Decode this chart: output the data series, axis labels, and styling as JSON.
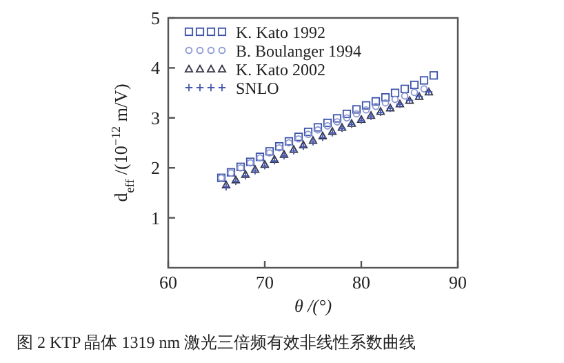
{
  "chart_data": {
    "type": "scatter",
    "xlabel": "θ /(°)",
    "ylabel": "d$_{eff}$ /(10$^{−12}$ m/V)",
    "xlim": [
      60,
      90
    ],
    "xticks": [
      60,
      70,
      80,
      90
    ],
    "ylim": [
      0,
      5
    ],
    "yticks": [
      1,
      2,
      3,
      4,
      5
    ],
    "grid": false,
    "legend": "top left",
    "annotations": [
      "图 2 KTP 晶体 1319 nm 激光三倍频有效非线性系数曲线"
    ],
    "series": [
      {
        "name": "K. Kato 1992",
        "color": "#3b52a8",
        "marker": "square",
        "x": [
          65.5,
          66.5,
          67.5,
          68.5,
          69.5,
          70.5,
          71.5,
          72.5,
          73.5,
          74.5,
          75.5,
          76.5,
          77.5,
          78.5,
          79.5,
          80.5,
          81.5,
          82.5,
          83.5,
          84.5,
          85.5,
          86.5,
          87.5
        ],
        "values": [
          1.8,
          1.91,
          2.02,
          2.12,
          2.22,
          2.33,
          2.43,
          2.53,
          2.62,
          2.72,
          2.81,
          2.9,
          2.99,
          3.08,
          3.17,
          3.25,
          3.33,
          3.41,
          3.5,
          3.58,
          3.66,
          3.75,
          3.85
        ]
      },
      {
        "name": "B. Boulanger 1994",
        "color": "#8a96d2",
        "marker": "circle",
        "x": [
          65.5,
          66.5,
          67.5,
          68.5,
          69.5,
          70.5,
          71.5,
          72.5,
          73.5,
          74.5,
          75.5,
          76.5,
          77.5,
          78.5,
          79.5,
          80.5,
          81.5,
          82.5,
          83.5,
          84.5,
          85.5,
          86.5
        ],
        "values": [
          1.8,
          1.9,
          2.0,
          2.1,
          2.2,
          2.3,
          2.4,
          2.5,
          2.58,
          2.67,
          2.76,
          2.84,
          2.92,
          3.0,
          3.08,
          3.16,
          3.23,
          3.3,
          3.37,
          3.44,
          3.51,
          3.58
        ]
      },
      {
        "name": "K. Kato 2002",
        "color": "#333344",
        "marker": "triangle",
        "x": [
          66,
          67,
          68,
          69,
          70,
          71,
          72,
          73,
          74,
          75,
          76,
          77,
          78,
          79,
          80,
          81,
          82,
          83,
          84,
          85,
          86,
          87
        ],
        "values": [
          1.66,
          1.76,
          1.87,
          1.97,
          2.07,
          2.17,
          2.27,
          2.37,
          2.46,
          2.55,
          2.64,
          2.73,
          2.81,
          2.89,
          2.97,
          3.05,
          3.13,
          3.2,
          3.28,
          3.35,
          3.43,
          3.52
        ]
      },
      {
        "name": "SNLO",
        "color": "#4557b0",
        "marker": "cross",
        "x": [
          66,
          67,
          68,
          69,
          70,
          71,
          72,
          73,
          74,
          75,
          76,
          77,
          78,
          79,
          80,
          81,
          82,
          83,
          84,
          85,
          86,
          87
        ],
        "values": [
          1.62,
          1.73,
          1.84,
          1.94,
          2.04,
          2.14,
          2.24,
          2.34,
          2.43,
          2.52,
          2.61,
          2.7,
          2.79,
          2.87,
          2.95,
          3.03,
          3.11,
          3.19,
          3.27,
          3.35,
          3.43,
          3.52
        ]
      }
    ]
  }
}
